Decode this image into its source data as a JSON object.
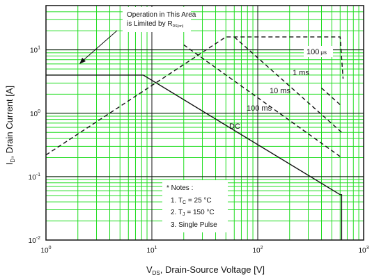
{
  "chart_data": {
    "type": "line",
    "scale": {
      "x": "log",
      "y": "log"
    },
    "xlim": [
      1,
      1000
    ],
    "ylim": [
      0.01,
      50
    ],
    "grid": true,
    "colors": {
      "grid": "#22dd22",
      "curve": "#111111",
      "background": "#ffffff"
    },
    "x_tick_labels": [
      "10",
      "10",
      "10",
      "10"
    ],
    "x_tick_exponents": [
      "0",
      "1",
      "2",
      "3"
    ],
    "y_tick_labels": [
      "10",
      "10",
      "10",
      "10"
    ],
    "y_tick_exponents": [
      "-2",
      "-1",
      "0",
      "1"
    ],
    "xlabel": {
      "main": "V",
      "sub": "DS",
      "rest": ", Drain-Source Voltage [V]"
    },
    "ylabel": {
      "main": "I",
      "sub": "D",
      "rest": ", Drain Current [A]"
    },
    "region_note": {
      "line1": "Operation in This Area",
      "line2": "is Limited by R",
      "line2_sub": "DS(on)"
    },
    "series": [
      {
        "name": "100 μs",
        "label_text": "100",
        "label_unit": "μs",
        "style": "dashed",
        "points": [
          [
            1,
            0.22
          ],
          [
            50,
            16
          ],
          [
            600,
            16
          ],
          [
            640,
            3.5
          ]
        ]
      },
      {
        "name": "1 ms",
        "label_text": "1 ms",
        "style": "dashed",
        "points": [
          [
            400,
            2.5
          ],
          [
            620,
            1.3
          ]
        ]
      },
      {
        "name": "10 ms",
        "label_text": "10 ms",
        "style": "dashed",
        "points": [
          [
            60,
            16
          ],
          [
            620,
            0.5
          ]
        ]
      },
      {
        "name": "100 ms",
        "label_text": "100 ms",
        "style": "dashed",
        "points": [
          [
            20,
            12
          ],
          [
            620,
            0.2
          ]
        ]
      },
      {
        "name": "DC",
        "label_text": "DC",
        "style": "solid",
        "points": [
          [
            1,
            4
          ],
          [
            8.3,
            4
          ],
          [
            600,
            0.052
          ],
          [
            620,
            0.052
          ],
          [
            620,
            0.01
          ]
        ]
      }
    ],
    "notes": {
      "title": "* Notes :",
      "items": [
        {
          "prefix": "1. T",
          "sub": "C",
          "suffix": " = 25 °C"
        },
        {
          "prefix": "2. T",
          "sub": "J",
          "suffix": " = 150 °C"
        },
        {
          "prefix": "3. Single Pulse",
          "sub": "",
          "suffix": ""
        }
      ]
    }
  }
}
